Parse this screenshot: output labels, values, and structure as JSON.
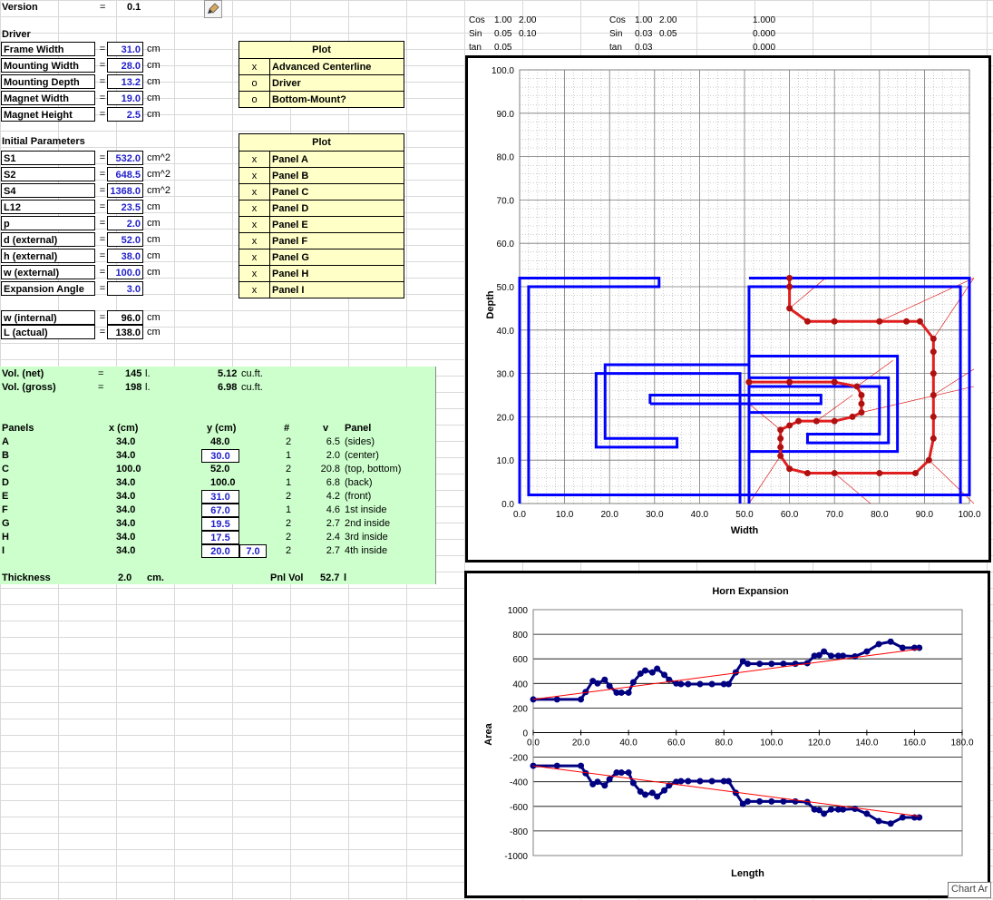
{
  "sheet": {
    "version": {
      "label": "Version",
      "eq": "=",
      "value": "0.1"
    },
    "driver_header": "Driver",
    "driver": [
      {
        "label": "Frame Width",
        "value": "31.0",
        "unit": "cm"
      },
      {
        "label": "Mounting Width",
        "value": "28.0",
        "unit": "cm"
      },
      {
        "label": "Mounting Depth",
        "value": "13.2",
        "unit": "cm"
      },
      {
        "label": "Magnet Width",
        "value": "19.0",
        "unit": "cm"
      },
      {
        "label": "Magnet Height",
        "value": "2.5",
        "unit": "cm"
      }
    ],
    "initial_header": "Initial Parameters",
    "initial": [
      {
        "label": "S1",
        "value": "532.0",
        "unit": "cm^2"
      },
      {
        "label": "S2",
        "value": "648.5",
        "unit": "cm^2"
      },
      {
        "label": "S4",
        "value": "1368.0",
        "unit": "cm^2"
      },
      {
        "label": "L12",
        "value": "23.5",
        "unit": "cm"
      },
      {
        "label": "p",
        "value": "2.0",
        "unit": "cm"
      },
      {
        "label": "d (external)",
        "value": "52.0",
        "unit": "cm"
      },
      {
        "label": "h (external)",
        "value": "38.0",
        "unit": "cm"
      },
      {
        "label": "w (external)",
        "value": "100.0",
        "unit": "cm"
      },
      {
        "label": "Expansion Angle",
        "value": "3.0",
        "unit": ""
      }
    ],
    "derived": [
      {
        "label": "w (internal)",
        "value": "96.0",
        "unit": "cm"
      },
      {
        "label": "L (actual)",
        "value": "138.0",
        "unit": "cm"
      }
    ],
    "eq": "="
  },
  "plot_table_1": {
    "title": "Plot",
    "rows": [
      {
        "mark": "x",
        "label": "Advanced Centerline"
      },
      {
        "mark": "o",
        "label": "Driver"
      },
      {
        "mark": "o",
        "label": "Bottom-Mount?"
      }
    ]
  },
  "plot_table_2": {
    "title": "Plot",
    "rows": [
      {
        "mark": "x",
        "label": "Panel A"
      },
      {
        "mark": "x",
        "label": "Panel B"
      },
      {
        "mark": "x",
        "label": "Panel C"
      },
      {
        "mark": "x",
        "label": "Panel D"
      },
      {
        "mark": "x",
        "label": "Panel E"
      },
      {
        "mark": "x",
        "label": "Panel F"
      },
      {
        "mark": "x",
        "label": "Panel G"
      },
      {
        "mark": "x",
        "label": "Panel H"
      },
      {
        "mark": "x",
        "label": "Panel I"
      }
    ]
  },
  "trig": {
    "left": [
      {
        "n": "Cos",
        "a": "1.00",
        "b": "2.00"
      },
      {
        "n": "Sin",
        "a": "0.05",
        "b": "0.10"
      },
      {
        "n": "tan",
        "a": "0.05",
        "b": ""
      }
    ],
    "right": [
      {
        "n": "Cos",
        "a": "1.00",
        "b": "2.00"
      },
      {
        "n": "Sin",
        "a": "0.03",
        "b": "0.05"
      },
      {
        "n": "tan",
        "a": "0.03",
        "b": ""
      }
    ],
    "far": [
      "1.000",
      "0.000",
      "0.000"
    ]
  },
  "volumes": {
    "net": {
      "label": "Vol. (net)",
      "eq": "=",
      "value": "145",
      "unit": "l.",
      "cuft": "5.12",
      "cuft_unit": "cu.ft."
    },
    "gross": {
      "label": "Vol. (gross)",
      "eq": "=",
      "value": "198",
      "unit": "l.",
      "cuft": "6.98",
      "cuft_unit": "cu.ft."
    }
  },
  "panels": {
    "headers": {
      "panels": "Panels",
      "x": "x (cm)",
      "y": "y (cm)",
      "num": "#",
      "v": "v",
      "panel": "Panel"
    },
    "rows": [
      {
        "name": "A",
        "x": "34.0",
        "y": "48.0",
        "ybox": false,
        "extra": "",
        "num": "2",
        "v": "6.5",
        "desc": "(sides)"
      },
      {
        "name": "B",
        "x": "34.0",
        "y": "30.0",
        "ybox": true,
        "extra": "",
        "num": "1",
        "v": "2.0",
        "desc": "(center)"
      },
      {
        "name": "C",
        "x": "100.0",
        "y": "52.0",
        "ybox": false,
        "extra": "",
        "num": "2",
        "v": "20.8",
        "desc": "(top, bottom)"
      },
      {
        "name": "D",
        "x": "34.0",
        "y": "100.0",
        "ybox": false,
        "extra": "",
        "num": "1",
        "v": "6.8",
        "desc": "(back)"
      },
      {
        "name": "E",
        "x": "34.0",
        "y": "31.0",
        "ybox": true,
        "extra": "",
        "num": "2",
        "v": "4.2",
        "desc": "(front)"
      },
      {
        "name": "F",
        "x": "34.0",
        "y": "67.0",
        "ybox": true,
        "extra": "",
        "num": "1",
        "v": "4.6",
        "desc": "1st inside"
      },
      {
        "name": "G",
        "x": "34.0",
        "y": "19.5",
        "ybox": true,
        "extra": "",
        "num": "2",
        "v": "2.7",
        "desc": "2nd inside"
      },
      {
        "name": "H",
        "x": "34.0",
        "y": "17.5",
        "ybox": true,
        "extra": "",
        "num": "2",
        "v": "2.4",
        "desc": "3rd inside"
      },
      {
        "name": "I",
        "x": "34.0",
        "y": "20.0",
        "ybox": true,
        "extra": "7.0",
        "num": "2",
        "v": "2.7",
        "desc": "4th inside"
      }
    ],
    "thickness": {
      "label": "Thickness",
      "value": "2.0",
      "unit": "cm."
    },
    "pnlvol": {
      "label": "Pnl Vol",
      "value": "52.7",
      "unit": "l"
    }
  },
  "colors": {
    "panel_blue": "#0000ff",
    "centerline_red": "#e02020",
    "series_navy": "#000080",
    "trend_red": "#ff0000",
    "green_fill": "#ccffcc",
    "yellow_fill": "#ffffc8"
  },
  "chart_tooltip": "Chart Ar",
  "chart_data": [
    {
      "type": "line",
      "title": "",
      "xlabel": "Width",
      "ylabel": "Depth",
      "xlim": [
        0,
        100
      ],
      "ylim": [
        0,
        100
      ],
      "xticks": [
        "0.0",
        "10.0",
        "20.0",
        "30.0",
        "40.0",
        "50.0",
        "60.0",
        "70.0",
        "80.0",
        "90.0",
        "100.0"
      ],
      "yticks": [
        "0.0",
        "10.0",
        "20.0",
        "30.0",
        "40.0",
        "50.0",
        "60.0",
        "70.0",
        "80.0",
        "90.0",
        "100.0"
      ],
      "grid": "dotted",
      "panel_lines": [
        [
          [
            0,
            0
          ],
          [
            0,
            52
          ],
          [
            31,
            52
          ],
          [
            31,
            50
          ],
          [
            2,
            50
          ],
          [
            2,
            2
          ],
          [
            100,
            2
          ],
          [
            100,
            52
          ],
          [
            51,
            52
          ]
        ],
        [
          [
            49,
            0
          ],
          [
            49,
            30
          ],
          [
            17,
            30
          ],
          [
            17,
            13
          ],
          [
            35,
            13
          ],
          [
            35,
            15
          ],
          [
            19,
            15
          ],
          [
            19,
            32
          ],
          [
            51,
            32
          ]
        ],
        [
          [
            51,
            0
          ],
          [
            51,
            50
          ],
          [
            98,
            50
          ],
          [
            98,
            0
          ]
        ],
        [
          [
            29,
            23
          ],
          [
            29,
            25
          ],
          [
            67,
            25
          ],
          [
            67,
            23
          ],
          [
            29,
            23
          ]
        ],
        [
          [
            51,
            34
          ],
          [
            84,
            34
          ],
          [
            84,
            12
          ],
          [
            51,
            12
          ]
        ],
        [
          [
            51,
            29
          ],
          [
            82,
            29
          ],
          [
            82,
            14
          ],
          [
            64,
            14
          ],
          [
            64,
            16
          ],
          [
            80,
            16
          ],
          [
            80,
            27
          ],
          [
            51,
            27
          ]
        ],
        [
          [
            51,
            23
          ],
          [
            67,
            23
          ]
        ],
        [
          [
            51,
            21
          ],
          [
            67,
            21
          ]
        ]
      ],
      "centerline": [
        [
          51,
          28
        ],
        [
          60,
          28
        ],
        [
          70,
          28
        ],
        [
          75,
          27
        ],
        [
          76,
          25
        ],
        [
          76,
          23
        ],
        [
          76,
          21
        ],
        [
          74,
          20
        ],
        [
          70,
          19
        ],
        [
          66,
          19
        ],
        [
          62,
          19
        ],
        [
          60,
          18
        ],
        [
          58,
          17
        ],
        [
          58,
          15
        ],
        [
          58,
          13
        ],
        [
          58,
          11
        ],
        [
          60,
          8
        ],
        [
          64,
          7
        ],
        [
          70,
          7
        ],
        [
          80,
          7
        ],
        [
          88,
          7
        ],
        [
          91,
          10
        ],
        [
          92,
          15
        ],
        [
          92,
          20
        ],
        [
          92,
          25
        ],
        [
          92,
          30
        ],
        [
          92,
          35
        ],
        [
          92,
          38
        ],
        [
          89,
          42
        ],
        [
          86,
          42
        ],
        [
          80,
          42
        ],
        [
          70,
          42
        ],
        [
          64,
          42
        ],
        [
          60,
          45
        ],
        [
          60,
          50
        ],
        [
          60,
          52
        ]
      ]
    },
    {
      "type": "line",
      "title": "Horn Expansion",
      "xlabel": "Length",
      "ylabel": "Area",
      "xlim": [
        0,
        180
      ],
      "ylim": [
        -1000,
        1000
      ],
      "xticks": [
        "0.0",
        "20.0",
        "40.0",
        "60.0",
        "80.0",
        "100.0",
        "120.0",
        "140.0",
        "160.0",
        "180.0"
      ],
      "yticks": [
        "1000",
        "800",
        "600",
        "400",
        "200",
        "0",
        "-200",
        "-400",
        "-600",
        "-800",
        "-1000"
      ],
      "series": [
        {
          "x": [
            0,
            10,
            20,
            22,
            25,
            27,
            30,
            32,
            35,
            37,
            40,
            42,
            45,
            47,
            50,
            52,
            55,
            57,
            60,
            62,
            65,
            70,
            75,
            80,
            82,
            85,
            88,
            90,
            95,
            100,
            105,
            110,
            115,
            118,
            120,
            122,
            125,
            128,
            130,
            135,
            140,
            145,
            150,
            155,
            160,
            162
          ],
          "y": [
            270,
            270,
            270,
            330,
            420,
            400,
            430,
            380,
            325,
            325,
            325,
            410,
            480,
            505,
            490,
            520,
            470,
            430,
            400,
            395,
            395,
            395,
            395,
            395,
            395,
            490,
            580,
            560,
            560,
            560,
            560,
            560,
            565,
            625,
            630,
            660,
            625,
            625,
            625,
            620,
            660,
            720,
            740,
            690,
            690,
            690
          ]
        },
        {
          "x": [
            0,
            10,
            20,
            22,
            25,
            27,
            30,
            32,
            35,
            37,
            40,
            42,
            45,
            47,
            50,
            52,
            55,
            57,
            60,
            62,
            65,
            70,
            75,
            80,
            82,
            85,
            88,
            90,
            95,
            100,
            105,
            110,
            115,
            118,
            120,
            122,
            125,
            128,
            130,
            135,
            140,
            145,
            150,
            155,
            160,
            162
          ],
          "y": [
            -270,
            -270,
            -270,
            -330,
            -420,
            -400,
            -430,
            -380,
            -325,
            -325,
            -325,
            -410,
            -480,
            -505,
            -490,
            -520,
            -470,
            -430,
            -400,
            -395,
            -395,
            -395,
            -395,
            -395,
            -395,
            -490,
            -580,
            -560,
            -560,
            -560,
            -560,
            -560,
            -565,
            -625,
            -630,
            -660,
            -625,
            -625,
            -625,
            -620,
            -660,
            -720,
            -740,
            -690,
            -690,
            -690
          ]
        }
      ],
      "trend": [
        {
          "from": [
            0,
            270
          ],
          "to": [
            162,
            680
          ]
        },
        {
          "from": [
            0,
            -270
          ],
          "to": [
            162,
            -680
          ]
        }
      ]
    }
  ]
}
